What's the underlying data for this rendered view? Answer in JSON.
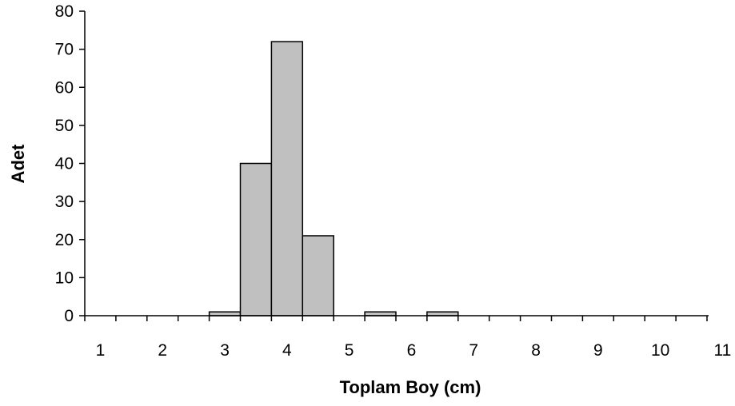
{
  "chart_data": {
    "type": "bar",
    "xlabel": "Toplam Boy (cm)",
    "ylabel": "Adet",
    "ylim": [
      0,
      80
    ],
    "yticks": [
      0,
      10,
      20,
      30,
      40,
      50,
      60,
      70,
      80
    ],
    "xlim": [
      0.75,
      10.75
    ],
    "xticks": [
      1,
      2,
      3,
      4,
      5,
      6,
      7,
      8,
      9,
      10,
      11
    ],
    "bin_width": 0.5,
    "bins": [
      {
        "x": 3.0,
        "value": 1
      },
      {
        "x": 3.5,
        "value": 40
      },
      {
        "x": 4.0,
        "value": 72
      },
      {
        "x": 4.5,
        "value": 21
      },
      {
        "x": 5.0,
        "value": 0
      },
      {
        "x": 5.5,
        "value": 1
      },
      {
        "x": 6.0,
        "value": 0
      },
      {
        "x": 6.5,
        "value": 1
      }
    ],
    "bar_color": "#c0c0c0",
    "grid": false,
    "legend": "none"
  }
}
